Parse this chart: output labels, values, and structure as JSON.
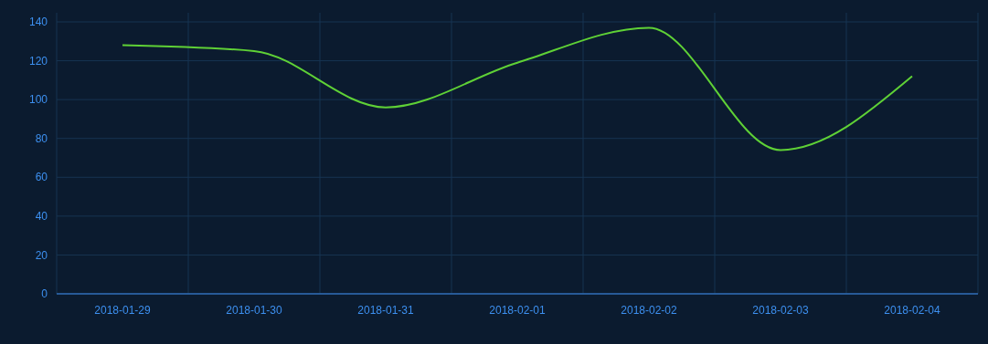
{
  "chart_data": {
    "type": "line",
    "categories": [
      "2018-01-29",
      "2018-01-30",
      "2018-01-31",
      "2018-02-01",
      "2018-02-02",
      "2018-02-03",
      "2018-02-04"
    ],
    "series": [
      {
        "color": "#5fd136",
        "values": [
          128,
          125,
          96,
          119,
          137,
          74,
          112
        ]
      }
    ],
    "ylim": [
      0,
      140
    ],
    "yticks": [
      0,
      20,
      40,
      60,
      80,
      100,
      120,
      140
    ],
    "grid": true,
    "marker": "none",
    "line_style": "solid"
  }
}
